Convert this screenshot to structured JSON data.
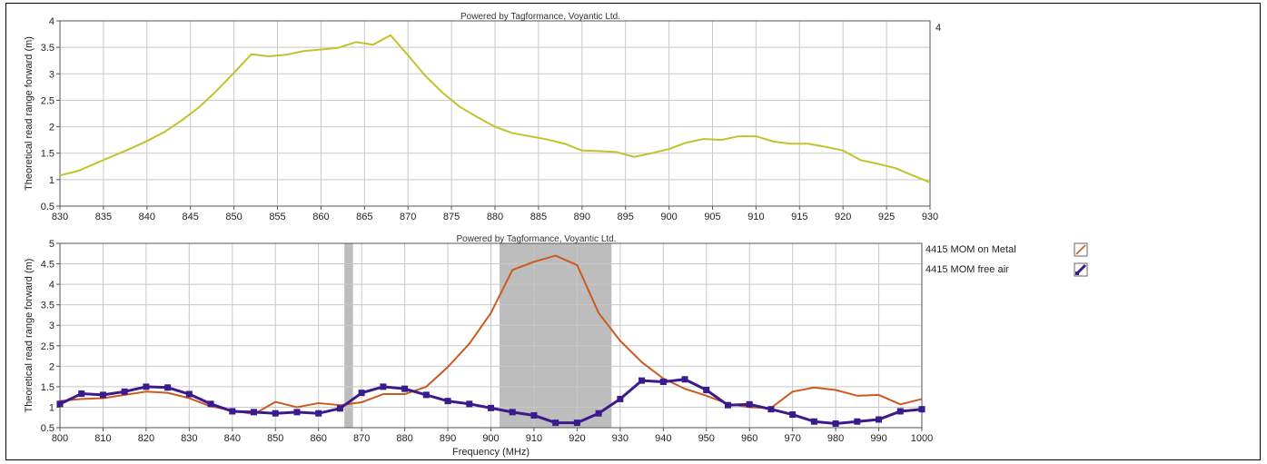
{
  "colors": {
    "yellow_series": "#c2c22a",
    "metal_series": "#cc5a20",
    "free_air_series": "#3a1a8c",
    "shade": "#bdbdbd",
    "grid": "#c8c8c8"
  },
  "chart_data": [
    {
      "type": "line",
      "title": "Powered by Tagformance, Voyantic Ltd.",
      "ylabel": "Theoretical read range forward (m)",
      "xlim": [
        830,
        930
      ],
      "ylim": [
        0.5,
        4
      ],
      "xticks": [
        830,
        835,
        840,
        845,
        850,
        855,
        860,
        865,
        870,
        875,
        880,
        885,
        890,
        895,
        900,
        905,
        910,
        915,
        920,
        925,
        930
      ],
      "xtick_labels": [
        "830",
        "835",
        "840",
        "845",
        "850",
        "855",
        "860",
        "865",
        "870",
        "875",
        "880",
        "885",
        "890",
        "895",
        "900",
        "905",
        "910",
        "915",
        "920",
        "925",
        "930"
      ],
      "yticks": [
        0.5,
        1,
        1.5,
        2,
        2.5,
        3,
        3.5,
        4
      ],
      "ytick_labels": [
        "0.5",
        "1",
        "1.5",
        "2",
        "2.5",
        "3",
        "3.5",
        "4"
      ],
      "right_label": "4",
      "grid": true,
      "series": [
        {
          "color": "#c2c22a",
          "x": [
            830,
            832,
            834,
            836,
            838,
            840,
            842,
            844,
            846,
            848,
            850,
            852,
            854,
            856,
            858,
            860,
            862,
            864,
            866,
            868,
            870,
            872,
            874,
            876,
            878,
            880,
            882,
            884,
            886,
            888,
            890,
            892,
            894,
            896,
            898,
            900,
            902,
            904,
            906,
            908,
            910,
            912,
            914,
            916,
            918,
            920,
            922,
            924,
            926,
            928,
            930
          ],
          "y": [
            1.08,
            1.16,
            1.3,
            1.44,
            1.58,
            1.73,
            1.9,
            2.12,
            2.37,
            2.68,
            3.02,
            3.37,
            3.33,
            3.36,
            3.43,
            3.46,
            3.49,
            3.6,
            3.55,
            3.73,
            3.35,
            2.96,
            2.64,
            2.37,
            2.18,
            2.0,
            1.88,
            1.82,
            1.76,
            1.68,
            1.55,
            1.54,
            1.52,
            1.43,
            1.5,
            1.58,
            1.7,
            1.77,
            1.75,
            1.82,
            1.82,
            1.72,
            1.68,
            1.68,
            1.62,
            1.55,
            1.37,
            1.3,
            1.22,
            1.08,
            0.95
          ]
        }
      ]
    },
    {
      "type": "line",
      "title": "Powered by Tagformance, Voyantic Ltd.",
      "xlabel": "Frequency (MHz)",
      "ylabel": "Theoretical read range forward (m)",
      "xlim": [
        800,
        1000
      ],
      "ylim": [
        0.5,
        5
      ],
      "xticks": [
        800,
        810,
        820,
        830,
        840,
        850,
        860,
        870,
        880,
        890,
        900,
        910,
        920,
        930,
        940,
        950,
        960,
        970,
        980,
        990,
        1000
      ],
      "xtick_labels": [
        "800",
        "810",
        "820",
        "830",
        "840",
        "850",
        "860",
        "870",
        "880",
        "890",
        "900",
        "910",
        "920",
        "930",
        "940",
        "950",
        "960",
        "970",
        "980",
        "990",
        "1000"
      ],
      "yticks": [
        0.5,
        1,
        1.5,
        2,
        2.5,
        3,
        3.5,
        4,
        4.5,
        5
      ],
      "ytick_labels": [
        "0.5",
        "1",
        "1.5",
        "2",
        "2.5",
        "3",
        "3.5",
        "4",
        "4.5",
        "5"
      ],
      "grid": true,
      "legend_position": "right",
      "shaded_bands": [
        [
          866,
          868
        ],
        [
          902,
          928
        ]
      ],
      "series": [
        {
          "name": "4415 MOM  on Metal",
          "color": "#cc5a20",
          "markers": false,
          "x": [
            800,
            805,
            810,
            815,
            820,
            825,
            830,
            835,
            840,
            845,
            850,
            855,
            860,
            865,
            870,
            875,
            880,
            885,
            890,
            895,
            900,
            905,
            910,
            915,
            920,
            925,
            930,
            935,
            940,
            945,
            950,
            955,
            960,
            965,
            970,
            975,
            980,
            985,
            990,
            995,
            1000
          ],
          "y": [
            1.15,
            1.2,
            1.22,
            1.3,
            1.38,
            1.35,
            1.22,
            1.02,
            0.92,
            0.83,
            1.13,
            1.0,
            1.1,
            1.05,
            1.12,
            1.32,
            1.32,
            1.5,
            1.98,
            2.55,
            3.3,
            4.35,
            4.55,
            4.7,
            4.47,
            3.3,
            2.62,
            2.1,
            1.7,
            1.45,
            1.28,
            1.08,
            1.0,
            0.98,
            1.38,
            1.48,
            1.42,
            1.28,
            1.3,
            1.07,
            1.2
          ]
        },
        {
          "name": "4415 MOM  free air",
          "color": "#3a1a8c",
          "markers": true,
          "x": [
            800,
            805,
            810,
            815,
            820,
            825,
            830,
            835,
            840,
            845,
            850,
            855,
            860,
            865,
            870,
            875,
            880,
            885,
            890,
            895,
            900,
            905,
            910,
            915,
            920,
            925,
            930,
            935,
            940,
            945,
            950,
            955,
            960,
            965,
            970,
            975,
            980,
            985,
            990,
            995,
            1000
          ],
          "y": [
            1.08,
            1.33,
            1.3,
            1.38,
            1.5,
            1.48,
            1.32,
            1.08,
            0.9,
            0.88,
            0.85,
            0.88,
            0.85,
            0.97,
            1.35,
            1.5,
            1.45,
            1.3,
            1.15,
            1.08,
            0.98,
            0.88,
            0.8,
            0.62,
            0.62,
            0.85,
            1.2,
            1.65,
            1.62,
            1.68,
            1.42,
            1.05,
            1.07,
            0.95,
            0.82,
            0.65,
            0.6,
            0.65,
            0.7,
            0.9,
            0.95
          ]
        }
      ]
    }
  ]
}
